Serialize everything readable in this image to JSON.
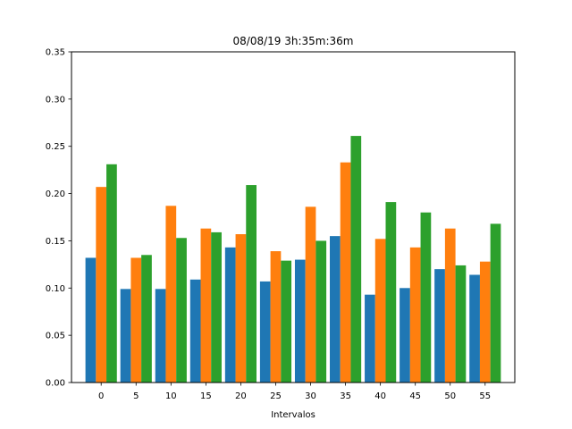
{
  "chart_data": {
    "type": "bar",
    "title": "08/08/19 3h:35m:36m",
    "xlabel": "Intervalos",
    "ylabel": "",
    "categories": [
      "0",
      "5",
      "10",
      "15",
      "20",
      "25",
      "30",
      "35",
      "40",
      "45",
      "50",
      "55"
    ],
    "ylim": [
      0,
      0.35
    ],
    "yticks": [
      "0.00",
      "0.05",
      "0.10",
      "0.15",
      "0.20",
      "0.25",
      "0.30",
      "0.35"
    ],
    "series": [
      {
        "color": "#1f77b4",
        "values": [
          0.132,
          0.099,
          0.099,
          0.109,
          0.143,
          0.107,
          0.13,
          0.155,
          0.093,
          0.1,
          0.12,
          0.114
        ]
      },
      {
        "color": "#ff7f0e",
        "values": [
          0.207,
          0.132,
          0.187,
          0.163,
          0.157,
          0.139,
          0.186,
          0.233,
          0.152,
          0.143,
          0.163,
          0.128
        ]
      },
      {
        "color": "#2ca02c",
        "values": [
          0.231,
          0.135,
          0.153,
          0.159,
          0.209,
          0.129,
          0.15,
          0.261,
          0.191,
          0.18,
          0.124,
          0.168
        ]
      }
    ],
    "grid": false,
    "legend": "none"
  }
}
